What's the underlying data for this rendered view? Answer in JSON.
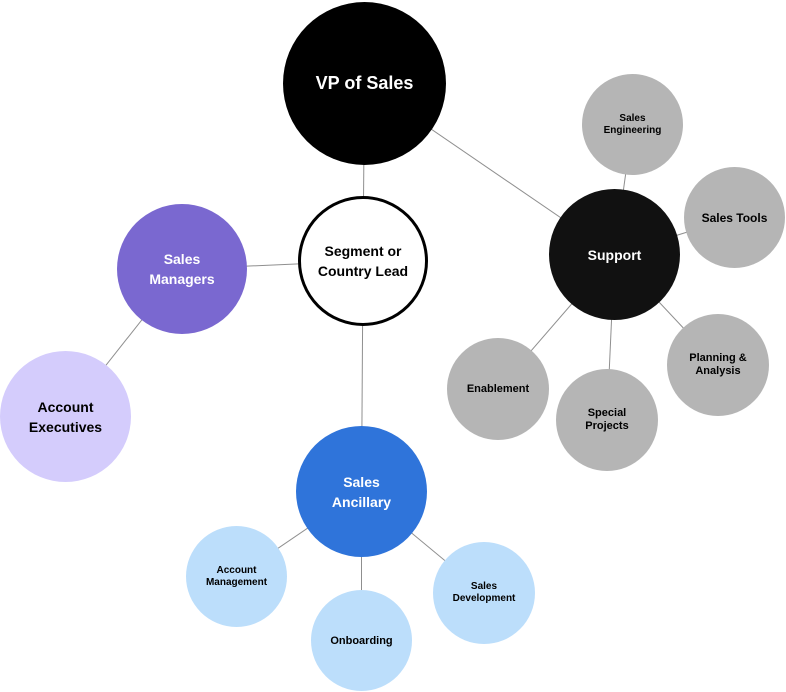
{
  "diagram": {
    "title": "",
    "nodes": {
      "vp_of_sales": "VP of Sales",
      "segment_lead": "Segment or\nCountry Lead",
      "sales_managers": "Sales\nManagers",
      "account_executives": "Account\nExecutives",
      "sales_ancillary": "Sales\nAncillary",
      "account_management": "Account\nManagement",
      "onboarding": "Onboarding",
      "sales_development": "Sales\nDevelopment",
      "support": "Support",
      "sales_engineering": "Sales\nEngineering",
      "sales_tools": "Sales Tools",
      "planning_analysis": "Planning &\nAnalysis",
      "special_projects": "Special\nProjects",
      "enablement": "Enablement"
    },
    "edges": [
      [
        "vp_of_sales",
        "segment_lead"
      ],
      [
        "vp_of_sales",
        "support"
      ],
      [
        "segment_lead",
        "sales_managers"
      ],
      [
        "segment_lead",
        "sales_ancillary"
      ],
      [
        "sales_managers",
        "account_executives"
      ],
      [
        "sales_ancillary",
        "account_management"
      ],
      [
        "sales_ancillary",
        "onboarding"
      ],
      [
        "sales_ancillary",
        "sales_development"
      ],
      [
        "support",
        "sales_engineering"
      ],
      [
        "support",
        "sales_tools"
      ],
      [
        "support",
        "planning_analysis"
      ],
      [
        "support",
        "special_projects"
      ],
      [
        "support",
        "enablement"
      ]
    ],
    "colors": {
      "vp": "#000000",
      "support": "#111111",
      "managers": "#7a68d0",
      "account_executives": "#d4ccfc",
      "ancillary": "#2f74da",
      "ancillary_children": "#bcdefb",
      "support_children": "#b5b5b5",
      "edge": "#8f8f8f"
    }
  }
}
